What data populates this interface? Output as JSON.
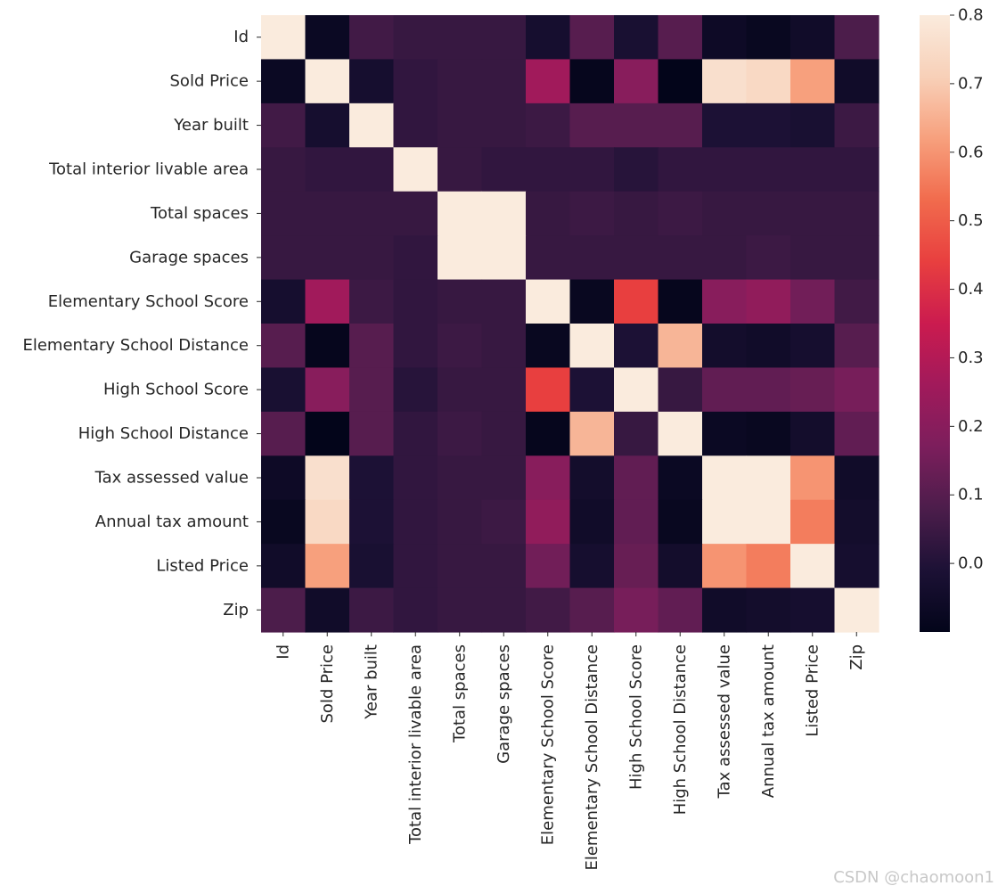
{
  "chart_data": {
    "type": "heatmap",
    "categories": [
      "Id",
      "Sold Price",
      "Year built",
      "Total interior livable area",
      "Total spaces",
      "Garage spaces",
      "Elementary School Score",
      "Elementary School Distance",
      "High School Score",
      "High School Distance",
      "Tax assessed value",
      "Annual tax amount",
      "Listed Price",
      "Zip"
    ],
    "values": [
      [
        1.0,
        -0.07,
        0.06,
        0.04,
        0.04,
        0.04,
        -0.03,
        0.1,
        -0.02,
        0.1,
        -0.06,
        -0.08,
        -0.05,
        0.08
      ],
      [
        -0.07,
        1.0,
        -0.03,
        0.03,
        0.04,
        0.04,
        0.26,
        -0.09,
        0.2,
        -0.1,
        0.76,
        0.74,
        0.62,
        -0.05
      ],
      [
        0.06,
        -0.03,
        1.0,
        0.03,
        0.04,
        0.04,
        0.05,
        0.1,
        0.1,
        0.1,
        -0.01,
        -0.01,
        -0.02,
        0.05
      ],
      [
        0.04,
        0.03,
        0.03,
        1.0,
        0.04,
        0.03,
        0.03,
        0.03,
        0.01,
        0.03,
        0.03,
        0.03,
        0.03,
        0.03
      ],
      [
        0.04,
        0.04,
        0.04,
        0.04,
        1.0,
        1.0,
        0.04,
        0.05,
        0.04,
        0.05,
        0.04,
        0.04,
        0.04,
        0.04
      ],
      [
        0.04,
        0.04,
        0.04,
        0.03,
        1.0,
        1.0,
        0.04,
        0.04,
        0.04,
        0.04,
        0.04,
        0.05,
        0.04,
        0.04
      ],
      [
        -0.03,
        0.26,
        0.05,
        0.03,
        0.04,
        0.04,
        1.0,
        -0.08,
        0.44,
        -0.09,
        0.2,
        0.22,
        0.15,
        0.06
      ],
      [
        0.1,
        -0.09,
        0.1,
        0.03,
        0.05,
        0.04,
        -0.08,
        1.0,
        -0.01,
        0.66,
        -0.04,
        -0.05,
        -0.03,
        0.1
      ],
      [
        -0.02,
        0.2,
        0.1,
        0.01,
        0.04,
        0.04,
        0.44,
        -0.01,
        1.0,
        0.04,
        0.12,
        0.12,
        0.13,
        0.16
      ],
      [
        0.1,
        -0.1,
        0.1,
        0.03,
        0.05,
        0.04,
        -0.09,
        0.66,
        0.04,
        1.0,
        -0.07,
        -0.08,
        -0.04,
        0.12
      ],
      [
        -0.06,
        0.76,
        -0.01,
        0.03,
        0.04,
        0.04,
        0.2,
        -0.04,
        0.12,
        -0.07,
        1.0,
        1.0,
        0.6,
        -0.05
      ],
      [
        -0.08,
        0.74,
        -0.01,
        0.03,
        0.04,
        0.05,
        0.22,
        -0.05,
        0.12,
        -0.08,
        1.0,
        1.0,
        0.56,
        -0.04
      ],
      [
        -0.05,
        0.62,
        -0.02,
        0.03,
        0.04,
        0.04,
        0.15,
        -0.03,
        0.13,
        -0.04,
        0.6,
        0.56,
        1.0,
        -0.03
      ],
      [
        0.08,
        -0.05,
        0.05,
        0.03,
        0.04,
        0.04,
        0.06,
        0.1,
        0.16,
        0.12,
        -0.05,
        -0.04,
        -0.03,
        1.0
      ]
    ],
    "colorbar": {
      "ticks": [
        "0.8",
        "0.7",
        "0.6",
        "0.5",
        "0.4",
        "0.3",
        "0.2",
        "0.1",
        "0.0"
      ],
      "tick_values": [
        0.8,
        0.7,
        0.6,
        0.5,
        0.4,
        0.3,
        0.2,
        0.1,
        0.0
      ],
      "vmin": -0.1,
      "vmax": 0.8
    },
    "colormap": [
      "#03051a",
      "#1c1135",
      "#4c1d4b",
      "#7c1e5c",
      "#a11a5b",
      "#cb1b4f",
      "#e83f3f",
      "#f16b4d",
      "#f7a07d",
      "#f8d0b8",
      "#faebdd"
    ],
    "grid": false
  },
  "watermark": "CSDN @chaomoon1"
}
